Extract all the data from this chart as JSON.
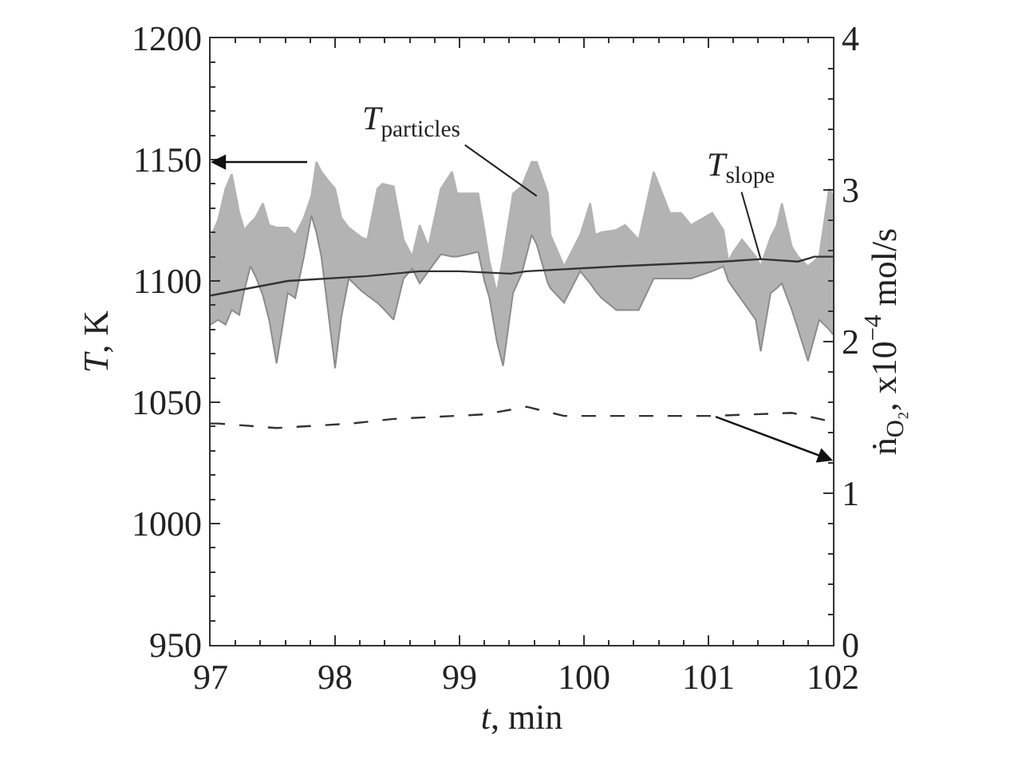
{
  "chart_data": {
    "type": "line",
    "xlabel": "t, min",
    "ylabel": "T, K",
    "y2label": "ṅ$_{O₂}$, x10$^{−4}$ mol/s",
    "xlim": [
      97,
      102
    ],
    "xticks": [
      97,
      98,
      99,
      100,
      101,
      102
    ],
    "ylim": [
      950,
      1200
    ],
    "yticks": [
      950,
      1000,
      1050,
      1100,
      1150,
      1200
    ],
    "y2lim": [
      0,
      4
    ],
    "y2ticks": [
      0,
      1,
      2,
      3,
      4
    ],
    "marker": "none",
    "series": [
      {
        "color": "#8c8c8c",
        "x": [
          97.0,
          97.06,
          97.12,
          97.17,
          97.23,
          97.27,
          97.32,
          97.36,
          97.42,
          97.47,
          97.53,
          97.62,
          97.68,
          97.75,
          97.81,
          97.85,
          97.89,
          97.95,
          98.0,
          98.05,
          98.11,
          98.21,
          98.26,
          98.34,
          98.38,
          98.47,
          98.55,
          98.62,
          98.68,
          98.75,
          98.85,
          98.94,
          98.98,
          99.07,
          99.15,
          99.2,
          99.24,
          99.3,
          99.35,
          99.43,
          99.5,
          99.58,
          99.62,
          99.71,
          99.73,
          99.84,
          99.97,
          100.05,
          100.09,
          100.14,
          100.26,
          100.33,
          100.44,
          100.56,
          100.69,
          100.78,
          100.86,
          101.03,
          101.12,
          101.16,
          101.2,
          101.27,
          101.38,
          101.42,
          101.5,
          101.55,
          101.59,
          101.67,
          101.72,
          101.8,
          101.89,
          101.97,
          102.0
        ],
        "values": [
          1082,
          1084,
          1082,
          1088,
          1086,
          1096,
          1106,
          1102,
          1094,
          1084,
          1066,
          1095,
          1093,
          1110,
          1127,
          1120,
          1110,
          1085,
          1064,
          1085,
          1101,
          1096,
          1094,
          1091,
          1089,
          1084,
          1101,
          1105,
          1099,
          1104,
          1111,
          1110,
          1110,
          1111,
          1112,
          1100,
          1093,
          1075,
          1065,
          1095,
          1103,
          1119,
          1115,
          1099,
          1097,
          1091,
          1104,
          1099,
          1096,
          1093,
          1088,
          1088,
          1088,
          1101,
          1101,
          1101,
          1101,
          1104,
          1106,
          1100,
          1097,
          1092,
          1084,
          1071,
          1095,
          1097,
          1099,
          1088,
          1080,
          1067,
          1084,
          1080,
          1078
        ]
      },
      {
        "name": "T$_{particles}$",
        "type": "area",
        "color": "#b3b3b3",
        "x": [
          97.0,
          97.06,
          97.12,
          97.17,
          97.23,
          97.27,
          97.32,
          97.36,
          97.42,
          97.47,
          97.53,
          97.62,
          97.68,
          97.75,
          97.81,
          97.85,
          97.89,
          97.95,
          98.0,
          98.05,
          98.11,
          98.21,
          98.26,
          98.34,
          98.38,
          98.47,
          98.55,
          98.62,
          98.68,
          98.75,
          98.85,
          98.94,
          98.98,
          99.07,
          99.15,
          99.2,
          99.24,
          99.3,
          99.35,
          99.43,
          99.5,
          99.58,
          99.62,
          99.71,
          99.73,
          99.84,
          99.97,
          100.05,
          100.09,
          100.14,
          100.26,
          100.33,
          100.44,
          100.56,
          100.69,
          100.78,
          100.86,
          101.03,
          101.12,
          101.16,
          101.2,
          101.27,
          101.38,
          101.42,
          101.5,
          101.55,
          101.59,
          101.67,
          101.72,
          101.8,
          101.89,
          101.97,
          102.0
        ],
        "values": [
          1118,
          1125,
          1138,
          1144,
          1128,
          1121,
          1124,
          1126,
          1132,
          1123,
          1122,
          1122,
          1119,
          1126,
          1135,
          1149,
          1145,
          1141,
          1138,
          1126,
          1122,
          1118,
          1117,
          1138,
          1140,
          1139,
          1117,
          1110,
          1123,
          1114,
          1138,
          1145,
          1136,
          1136,
          1136,
          1121,
          1108,
          1095,
          1110,
          1136,
          1139,
          1149,
          1149,
          1136,
          1119,
          1106,
          1119,
          1132,
          1119,
          1120,
          1121,
          1123,
          1117,
          1145,
          1128,
          1128,
          1123,
          1128,
          1121,
          1108,
          1112,
          1117,
          1110,
          1106,
          1118,
          1123,
          1132,
          1114,
          1110,
          1106,
          1110,
          1138,
          1135
        ]
      },
      {
        "name": "T$_{slope}$",
        "type": "line",
        "color": "#333333",
        "line_style": "solid",
        "x": [
          97.0,
          97.62,
          98.26,
          98.68,
          99.0,
          99.41,
          99.54,
          100.26,
          101.12,
          101.42,
          101.72,
          101.85,
          102.0
        ],
        "values": [
          1094,
          1100,
          1102,
          1104,
          1104,
          1103,
          1104,
          1106,
          1108,
          1109,
          1108,
          1110,
          1110
        ]
      },
      {
        "type": "line",
        "axis": "y2",
        "color": "#333333",
        "line_style": "dashed",
        "x": [
          97.0,
          97.06,
          97.53,
          98.13,
          98.47,
          99.2,
          99.54,
          99.84,
          101.03,
          101.67,
          101.95,
          102.0
        ],
        "values": [
          1.46,
          1.46,
          1.43,
          1.46,
          1.49,
          1.52,
          1.57,
          1.51,
          1.51,
          1.53,
          1.48,
          1.47
        ]
      }
    ]
  }
}
